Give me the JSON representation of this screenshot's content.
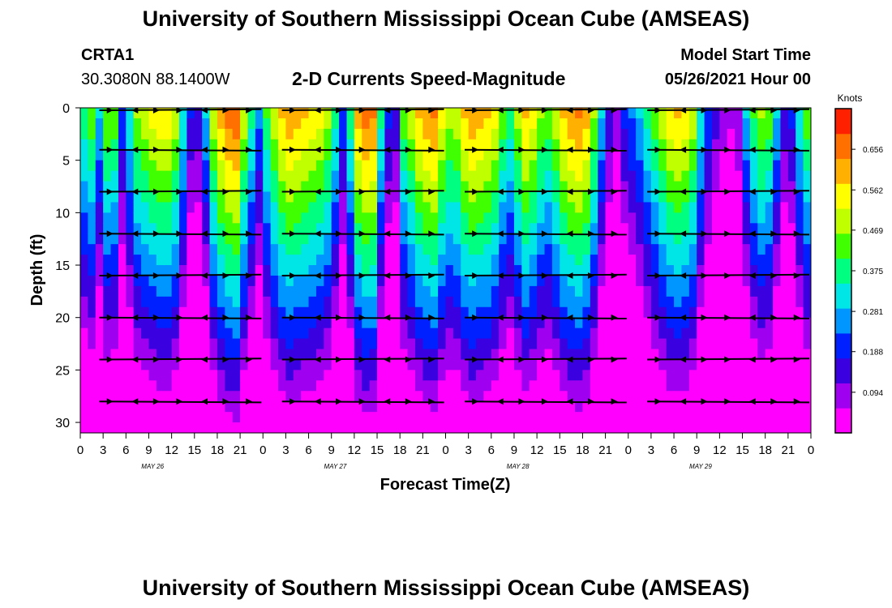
{
  "header": {
    "title": "University of Southern Mississippi Ocean Cube (AMSEAS)",
    "station_id": "CRTA1",
    "station_coords": "30.3080N  88.1400W",
    "chart_title": "2-D Currents Speed-Magnitude",
    "model_start_label": "Model Start Time",
    "model_start_value": "05/26/2021 Hour 00"
  },
  "footer": {
    "title": "University of Southern Mississippi Ocean Cube (AMSEAS)"
  },
  "chart_data": {
    "type": "heatmap",
    "xlabel": "Forecast Time(Z)",
    "ylabel": "Depth (ft)",
    "y_ticks": [
      0,
      5,
      10,
      15,
      20,
      25,
      30
    ],
    "ylim": [
      0,
      31
    ],
    "x_ticks_per_day": [
      "0",
      "3",
      "6",
      "9",
      "12",
      "15",
      "18",
      "21"
    ],
    "x_end_tick": "0",
    "days": [
      "MAY 26",
      "MAY 27",
      "MAY 28",
      "MAY 29"
    ],
    "hours_total": 96,
    "colorbar": {
      "label": "Knots",
      "ticks": [
        0.656,
        0.562,
        0.469,
        0.375,
        0.281,
        0.188,
        0.094
      ],
      "range": [
        0.0,
        0.75
      ],
      "colors": [
        "#ff00ff",
        "#a000f0",
        "#3a00e0",
        "#0020ff",
        "#0096ff",
        "#00e6e6",
        "#00ff80",
        "#40ff00",
        "#c0ff00",
        "#ffff00",
        "#ffb000",
        "#ff7000",
        "#ff2000"
      ]
    },
    "speed_profile_hourly_knots": [
      0.4,
      0.45,
      0.3,
      0.47,
      0.45,
      0.22,
      0.35,
      0.48,
      0.52,
      0.55,
      0.57,
      0.58,
      0.52,
      0.35,
      0.18,
      0.16,
      0.3,
      0.52,
      0.62,
      0.68,
      0.7,
      0.52,
      0.38,
      0.26,
      0.42,
      0.52,
      0.6,
      0.64,
      0.62,
      0.6,
      0.58,
      0.55,
      0.5,
      0.38,
      0.22,
      0.4,
      0.62,
      0.68,
      0.66,
      0.38,
      0.2,
      0.16,
      0.45,
      0.52,
      0.6,
      0.64,
      0.66,
      0.55,
      0.5,
      0.52,
      0.6,
      0.64,
      0.62,
      0.6,
      0.55,
      0.45,
      0.4,
      0.5,
      0.6,
      0.55,
      0.48,
      0.45,
      0.52,
      0.6,
      0.64,
      0.66,
      0.62,
      0.48,
      0.3,
      0.16,
      0.1,
      0.2,
      0.25,
      0.3,
      0.38,
      0.45,
      0.52,
      0.58,
      0.6,
      0.58,
      0.52,
      0.35,
      0.22,
      0.15,
      0.1,
      0.08,
      0.12,
      0.3,
      0.42,
      0.48,
      0.45,
      0.3,
      0.16,
      0.2,
      0.35,
      0.45,
      0.4
    ],
    "depth_decay_per_ft": 0.018,
    "vector_depths_ft": [
      0,
      4,
      8,
      12,
      16,
      20,
      24,
      28
    ]
  }
}
